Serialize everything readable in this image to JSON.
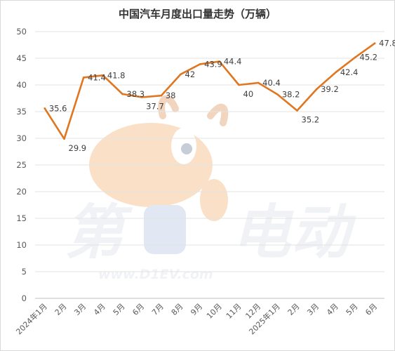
{
  "chart_data": {
    "type": "line",
    "title": "中国汽车月度出口量走势（万辆）",
    "categories": [
      "2024年1月",
      "2月",
      "3月",
      "4月",
      "5月",
      "6月",
      "7月",
      "8月",
      "9月",
      "10月",
      "11月",
      "12月",
      "2025年1月",
      "2月",
      "3月",
      "4月",
      "5月",
      "6月"
    ],
    "series": [
      {
        "values": [
          35.6,
          29.9,
          41.4,
          41.8,
          38.3,
          37.7,
          38,
          42,
          43.9,
          44.4,
          40,
          40.4,
          38.2,
          35.2,
          39.2,
          42.4,
          45.2,
          47.8
        ]
      }
    ],
    "ylim": [
      0,
      50
    ],
    "yticks": [
      0,
      5,
      10,
      15,
      20,
      25,
      30,
      35,
      40,
      45,
      50
    ],
    "grid": "horizontal",
    "line_color": "#e0761f",
    "xlabel": "",
    "ylabel": ""
  },
  "watermark": {
    "left_text": "第",
    "right_text": "电动",
    "url": "www.D1EV.com"
  }
}
